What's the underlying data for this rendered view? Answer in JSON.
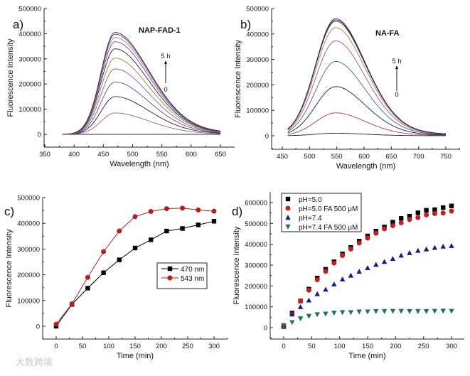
{
  "watermark": "大数跨境",
  "chart_data": [
    {
      "panel": "a)",
      "type": "line",
      "title": "NAP-FAD-1",
      "xlabel": "Wavelength (nm)",
      "ylabel": "Fluorescence Intensity",
      "xlim": [
        350,
        670
      ],
      "ylim": [
        -50000,
        500000
      ],
      "xticks": [
        350,
        400,
        450,
        500,
        550,
        600,
        650
      ],
      "yticks": [
        0,
        100000,
        200000,
        300000,
        400000,
        500000
      ],
      "annotation_top": "5 h",
      "annotation_bottom": "0",
      "wavelength_range": [
        380,
        650
      ],
      "peak_wavelength": 470,
      "peak_intensities": [
        0,
        85000,
        150000,
        208000,
        260000,
        303000,
        340000,
        368000,
        385000,
        398000,
        405000
      ],
      "colors": [
        "#333333",
        "#a0607a",
        "#1c1c44",
        "#6a4a8a",
        "#8a5a9a",
        "#8a8a3a",
        "#202040",
        "#7a4a7a",
        "#a070a0",
        "#5a3a6a",
        "#3a2a4a"
      ]
    },
    {
      "panel": "b)",
      "type": "line",
      "title": "NA-FA",
      "xlabel": "Wavelength (nm)",
      "ylabel": "Fluorescence Intensity",
      "xlim": [
        425,
        770
      ],
      "ylim": [
        -50000,
        500000
      ],
      "xticks": [
        450,
        500,
        550,
        600,
        650,
        700,
        750
      ],
      "yticks": [
        0,
        100000,
        200000,
        300000,
        400000,
        500000
      ],
      "annotation_top": "5 h",
      "annotation_bottom": "0",
      "wavelength_range": [
        460,
        750
      ],
      "peak_wavelength": 548,
      "peak_intensities": [
        10000,
        90000,
        193000,
        292000,
        373000,
        425000,
        450000,
        455000,
        460000
      ],
      "colors": [
        "#222222",
        "#a04050",
        "#1c1c44",
        "#3a6a7a",
        "#a050a0",
        "#8a8a3a",
        "#5a3a6a",
        "#2a2a3a",
        "#402040"
      ]
    },
    {
      "panel": "c)",
      "type": "line",
      "xlabel": "Time (min)",
      "ylabel": "Fluorescence Intensity",
      "xlim": [
        -25,
        320
      ],
      "ylim": [
        -50000,
        500000
      ],
      "xticks": [
        0,
        50,
        100,
        150,
        200,
        250,
        300
      ],
      "yticks": [
        0,
        100000,
        200000,
        300000,
        400000,
        500000
      ],
      "legend_position": "center-right",
      "x": [
        0,
        30,
        60,
        90,
        120,
        150,
        180,
        210,
        240,
        270,
        300
      ],
      "series": [
        {
          "name": "470 nm",
          "marker": "square",
          "color": "#000000",
          "values": [
            0,
            85000,
            148000,
            208000,
            258000,
            304000,
            336000,
            370000,
            380000,
            394000,
            408000
          ]
        },
        {
          "name": "543 nm",
          "marker": "circle",
          "color": "#b02020",
          "values": [
            8000,
            87000,
            190000,
            290000,
            370000,
            426000,
            446000,
            457000,
            459000,
            452000,
            447000
          ]
        }
      ]
    },
    {
      "panel": "d)",
      "type": "scatter",
      "xlabel": "Time (min)",
      "ylabel": "Fluorescence Intensity",
      "xlim": [
        -25,
        315
      ],
      "ylim": [
        -50000,
        650000
      ],
      "xticks": [
        0,
        50,
        100,
        150,
        200,
        250,
        300
      ],
      "yticks": [
        0,
        100000,
        200000,
        300000,
        400000,
        500000,
        600000
      ],
      "legend_position": "top-left",
      "x": [
        0,
        15,
        30,
        45,
        60,
        75,
        90,
        105,
        120,
        135,
        150,
        165,
        180,
        195,
        210,
        225,
        240,
        255,
        270,
        285,
        300
      ],
      "series": [
        {
          "name": "pH=5.0",
          "marker": "square",
          "color": "#000000",
          "values": [
            5000,
            70000,
            128000,
            185000,
            238000,
            280000,
            316000,
            354000,
            385000,
            415000,
            440000,
            463000,
            483000,
            506000,
            524000,
            535000,
            551000,
            563000,
            566000,
            576000,
            584000
          ]
        },
        {
          "name": "pH=5.0 FA 500 μM",
          "marker": "circle",
          "color": "#c02020",
          "values": [
            5000,
            65000,
            128000,
            180000,
            230000,
            270000,
            310000,
            346000,
            377000,
            406000,
            430000,
            453000,
            474000,
            489000,
            503000,
            519000,
            528000,
            541000,
            547000,
            550000,
            559000
          ]
        },
        {
          "name": "pH=7.4",
          "marker": "triangle-up",
          "color": "#1a1a8a",
          "values": [
            12000,
            65000,
            100000,
            132000,
            162000,
            184000,
            209000,
            233000,
            251000,
            270000,
            287000,
            303000,
            317000,
            331000,
            347000,
            359000,
            370000,
            377000,
            384000,
            390000,
            393000
          ]
        },
        {
          "name": "pH=7.4 FA 500 μM",
          "marker": "triangle-down",
          "color": "#1f6f5f",
          "values": [
            10000,
            25000,
            43000,
            55000,
            63000,
            66000,
            70000,
            73000,
            73000,
            76000,
            76000,
            78000,
            78000,
            79000,
            79000,
            78000,
            78000,
            78000,
            79000,
            80000,
            79000
          ]
        }
      ]
    }
  ]
}
